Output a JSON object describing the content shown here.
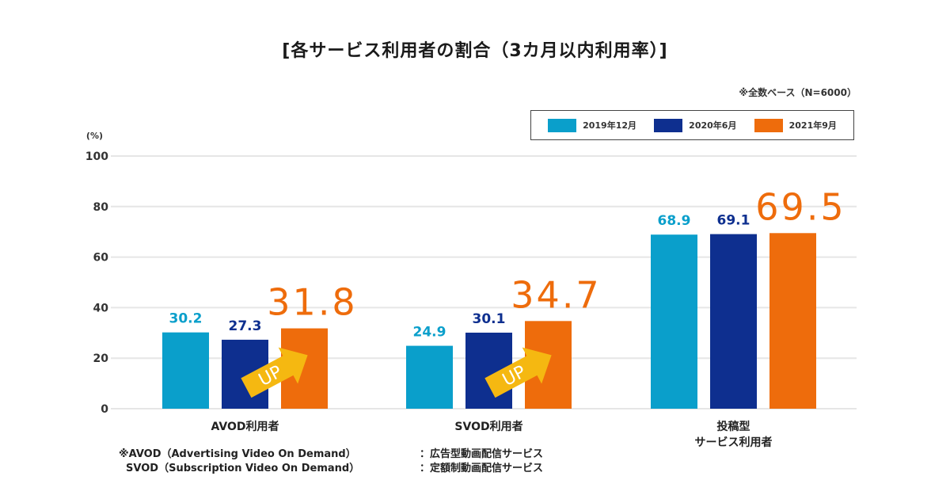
{
  "title": "[各サービス利用者の割合（3カ月以内利用率）]",
  "base_note": "※全数ベース（N=6000）",
  "legend": [
    {
      "label": "2019年12月",
      "color": "#0a9fcb"
    },
    {
      "label": "2020年6月",
      "color": "#0e2f8f"
    },
    {
      "label": "2021年9月",
      "color": "#ee6c0c"
    }
  ],
  "up_badge": {
    "label": "UP",
    "color": "#f5b811"
  },
  "footnotes": [
    {
      "left": "※AVOD（Advertising Video On Demand）",
      "right": "：広告型動画配信サービス"
    },
    {
      "left": "  SVOD（Subscription Video On Demand）",
      "right": "：定額制動画配信サービス"
    }
  ],
  "chart_data": {
    "type": "bar",
    "title": "[各サービス利用者の割合（3カ月以内利用率）]",
    "ylabel": "(%)",
    "xlabel": "",
    "ylim": [
      0,
      100
    ],
    "yticks": [
      0,
      20,
      40,
      60,
      80,
      100
    ],
    "grid": true,
    "legend_position": "top-right",
    "categories": [
      "AVOD利用者",
      "SVOD利用者",
      "投稿型\nサービス利用者"
    ],
    "series": [
      {
        "name": "2019年12月",
        "color": "#0a9fcb",
        "values": [
          30.2,
          24.9,
          68.9
        ]
      },
      {
        "name": "2020年6月",
        "color": "#0e2f8f",
        "values": [
          27.3,
          30.1,
          69.1
        ]
      },
      {
        "name": "2021年9月",
        "color": "#ee6c0c",
        "values": [
          31.8,
          34.7,
          69.5
        ],
        "highlight": true
      }
    ],
    "annotations": [
      {
        "category": "AVOD利用者",
        "text": "UP"
      },
      {
        "category": "SVOD利用者",
        "text": "UP"
      }
    ]
  }
}
